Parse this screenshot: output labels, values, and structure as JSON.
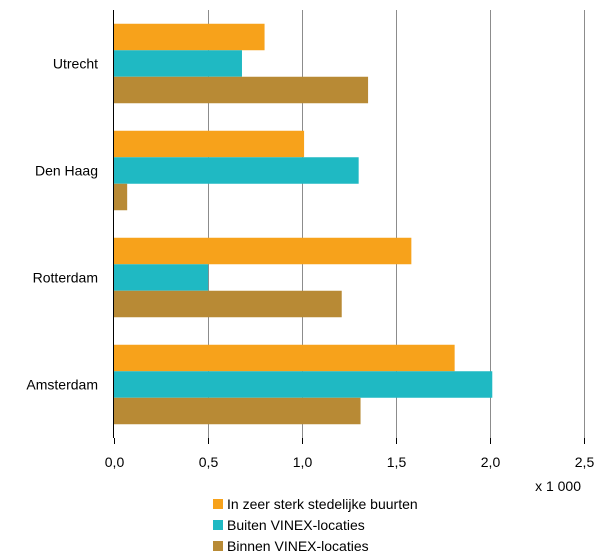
{
  "chart_data": {
    "type": "bar",
    "orientation": "horizontal",
    "categories": [
      "Utrecht",
      "Den Haag",
      "Rotterdam",
      "Amsterdam"
    ],
    "series": [
      {
        "name": "In zeer sterk stedelijke buurten",
        "color": "#f7a21b",
        "values": [
          0.8,
          1.01,
          1.58,
          1.81
        ]
      },
      {
        "name": "Buiten VINEX-locaties",
        "color": "#1fb9c3",
        "values": [
          0.68,
          1.3,
          0.5,
          2.01
        ]
      },
      {
        "name": "Binnen VINEX-locaties",
        "color": "#b88a35",
        "values": [
          1.35,
          0.07,
          1.21,
          1.31
        ]
      }
    ],
    "xlim": [
      0,
      2.5
    ],
    "xticks": [
      "0,0",
      "0,5",
      "1,0",
      "1,5",
      "2,0",
      "2,5"
    ],
    "unit_label": "x 1 000",
    "grid": true,
    "legend": "bottom"
  }
}
